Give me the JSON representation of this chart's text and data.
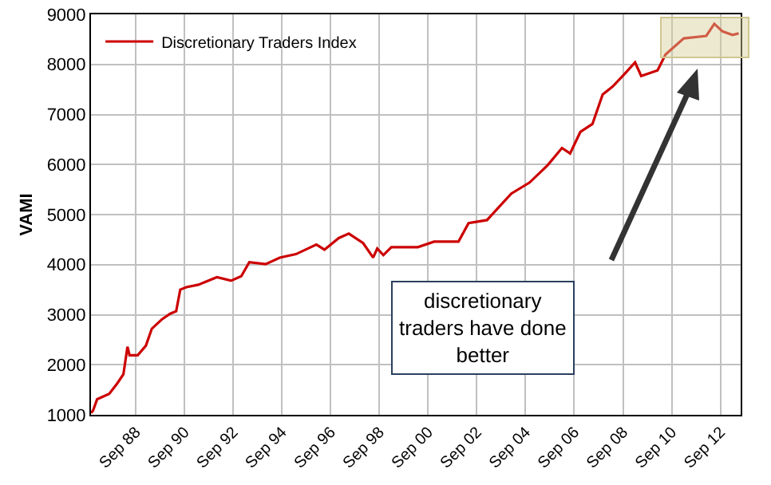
{
  "chart_data": {
    "type": "line",
    "ylabel": "VAMI",
    "x": [
      "1986-11",
      "1986-12",
      "1987-02",
      "1987-08",
      "1987-12",
      "1988-03",
      "1988-05",
      "1988-06",
      "1988-10",
      "1989-02",
      "1989-05",
      "1989-10",
      "1990-02",
      "1990-05",
      "1990-07",
      "1990-10",
      "1991-04",
      "1992-01",
      "1992-08",
      "1993-01",
      "1993-05",
      "1994-01",
      "1994-08",
      "1995-04",
      "1996-02",
      "1996-06",
      "1997-01",
      "1997-06",
      "1998-01",
      "1998-06",
      "1998-08",
      "1998-11",
      "1999-03",
      "2000-04",
      "2000-12",
      "2001-12",
      "2002-05",
      "2003-02",
      "2004-02",
      "2004-11",
      "2005-08",
      "2006-03",
      "2006-07",
      "2006-12",
      "2007-06",
      "2007-11",
      "2008-04",
      "2008-10",
      "2009-03",
      "2009-06",
      "2010-02",
      "2010-06",
      "2011-03",
      "2012-02",
      "2012-06",
      "2012-10",
      "2013-03",
      "2013-06"
    ],
    "series": [
      {
        "name": "Discretionary Traders Index",
        "color": "#cc0000",
        "values": [
          1040,
          1080,
          1310,
          1420,
          1630,
          1810,
          2360,
          2190,
          2190,
          2380,
          2720,
          2910,
          3020,
          3070,
          3500,
          3550,
          3600,
          3750,
          3680,
          3770,
          4050,
          4010,
          4140,
          4210,
          4400,
          4300,
          4530,
          4620,
          4430,
          4140,
          4320,
          4190,
          4350,
          4350,
          4460,
          4460,
          4830,
          4890,
          5420,
          5640,
          5990,
          6330,
          6220,
          6650,
          6810,
          7400,
          7560,
          7820,
          8040,
          7770,
          7880,
          8200,
          8520,
          8570,
          8810,
          8660,
          8590,
          8620
        ]
      }
    ],
    "xlim": [
      "1986-11",
      "2013-07"
    ],
    "xticks": [
      {
        "value": "1988-09",
        "label": "Sep 88"
      },
      {
        "value": "1990-09",
        "label": "Sep 90"
      },
      {
        "value": "1992-09",
        "label": "Sep 92"
      },
      {
        "value": "1994-09",
        "label": "Sep 94"
      },
      {
        "value": "1996-09",
        "label": "Sep 96"
      },
      {
        "value": "1998-09",
        "label": "Sep 98"
      },
      {
        "value": "2000-09",
        "label": "Sep 00"
      },
      {
        "value": "2002-09",
        "label": "Sep 02"
      },
      {
        "value": "2004-09",
        "label": "Sep 04"
      },
      {
        "value": "2006-09",
        "label": "Sep 06"
      },
      {
        "value": "2008-09",
        "label": "Sep 08"
      },
      {
        "value": "2010-09",
        "label": "Sep 10"
      },
      {
        "value": "2012-09",
        "label": "Sep 12"
      }
    ],
    "ylim": [
      1000,
      9000
    ],
    "yticks": [
      1000,
      2000,
      3000,
      4000,
      5000,
      6000,
      7000,
      8000,
      9000
    ],
    "grid": true,
    "legend": "top left",
    "marker": "none",
    "line_style": "solid",
    "annotations": [
      "discretionary\ntraders have done\nbetter"
    ]
  }
}
